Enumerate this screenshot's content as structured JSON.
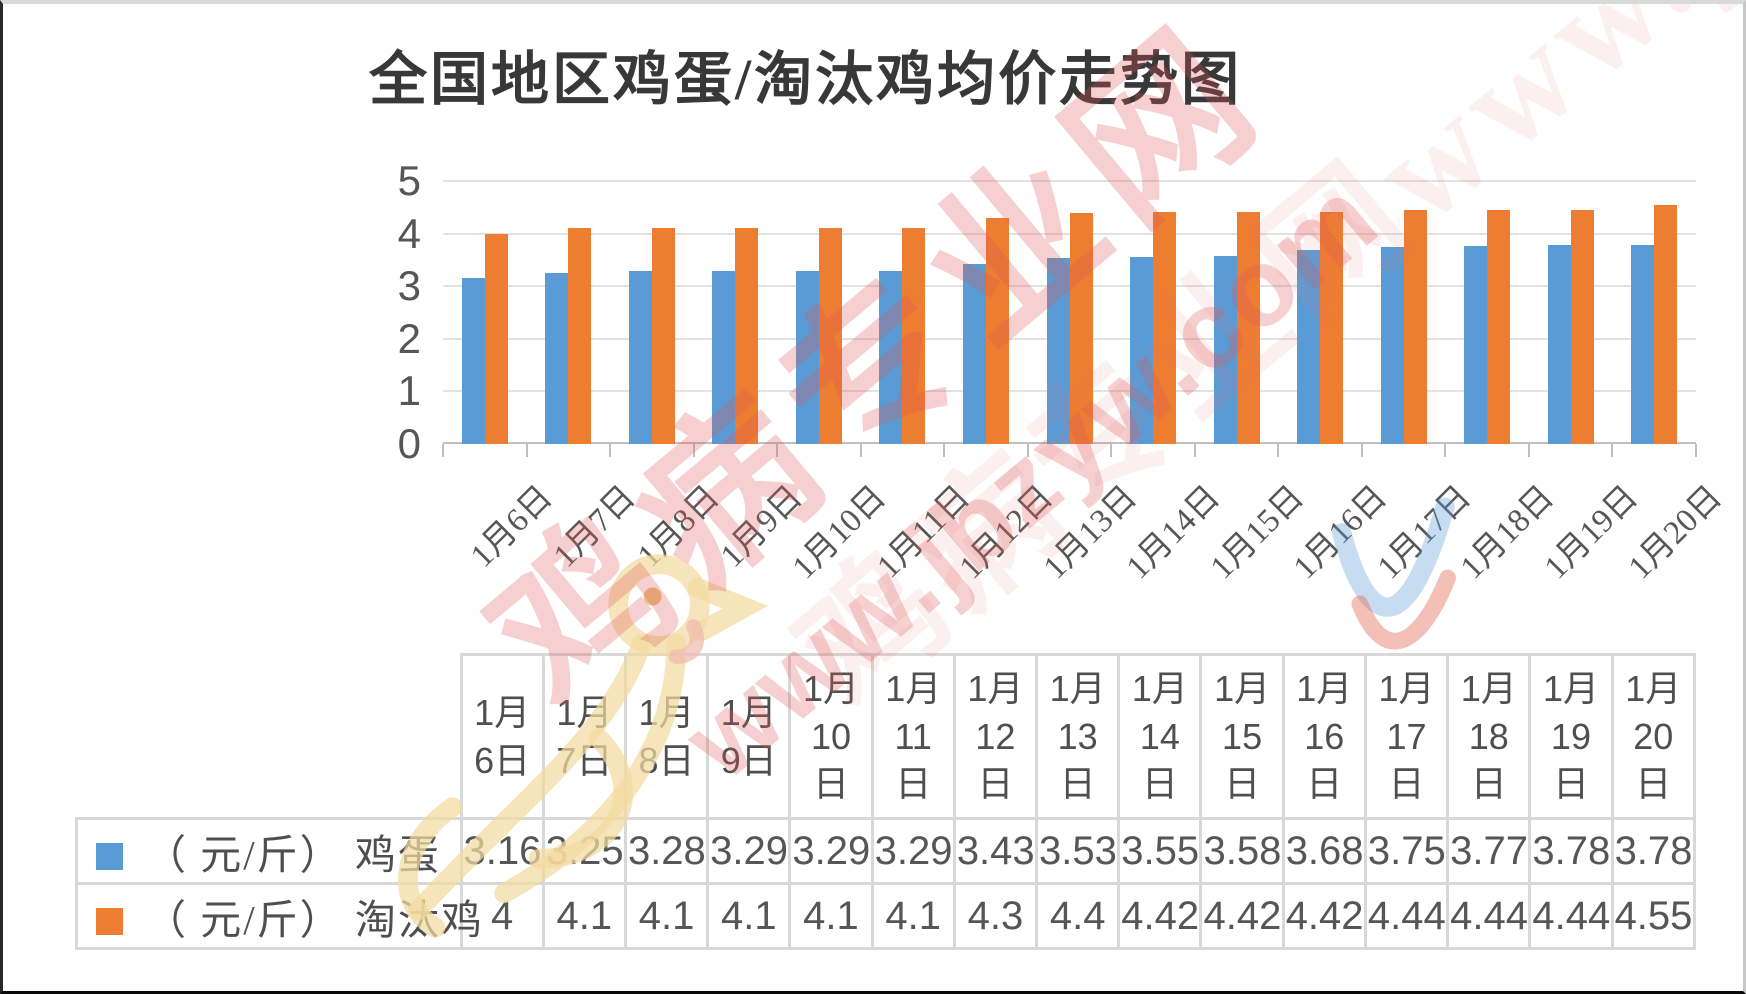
{
  "title": "全国地区鸡蛋/淘汰鸡均价走势图",
  "watermark": {
    "site_name": "鸡病专业网",
    "site_url": "www.jbzyw.com",
    "faint_repeat": "鸡病专业网www.jbzyw.com"
  },
  "colors": {
    "egg_series": "#5B9BD5",
    "culled_chicken_series": "#ED7D31",
    "gridline": "#E2E2E2",
    "axis_line": "#BFBFBF",
    "axis_text": "#565656",
    "title_text": "#383838",
    "table_border": "#D8D8D8",
    "table_text": "#565656",
    "watermark_red": "#E05555",
    "watermark_cream": "#F3D9A0"
  },
  "chart_data": {
    "type": "bar",
    "title": "全国地区鸡蛋/淘汰鸡均价走势图",
    "categories": [
      "1月6日",
      "1月7日",
      "1月8日",
      "1月9日",
      "1月10日",
      "1月11日",
      "1月12日",
      "1月13日",
      "1月14日",
      "1月15日",
      "1月16日",
      "1月17日",
      "1月18日",
      "1月19日",
      "1月20日"
    ],
    "series": [
      {
        "name": "（ 元/斤） 鸡蛋",
        "color": "#5B9BD5",
        "values": [
          3.16,
          3.25,
          3.28,
          3.29,
          3.29,
          3.29,
          3.43,
          3.53,
          3.55,
          3.58,
          3.68,
          3.75,
          3.77,
          3.78,
          3.78
        ]
      },
      {
        "name": "（ 元/斤） 淘汰鸡",
        "color": "#ED7D31",
        "values": [
          4,
          4.1,
          4.1,
          4.1,
          4.1,
          4.1,
          4.3,
          4.4,
          4.42,
          4.42,
          4.42,
          4.44,
          4.44,
          4.44,
          4.55
        ]
      }
    ],
    "xlabel": "",
    "ylabel": "",
    "ylim": [
      0,
      5
    ],
    "yticks": [
      0,
      1,
      2,
      3,
      4,
      5
    ],
    "grid": true,
    "legend_position": "left column of data table below chart"
  }
}
